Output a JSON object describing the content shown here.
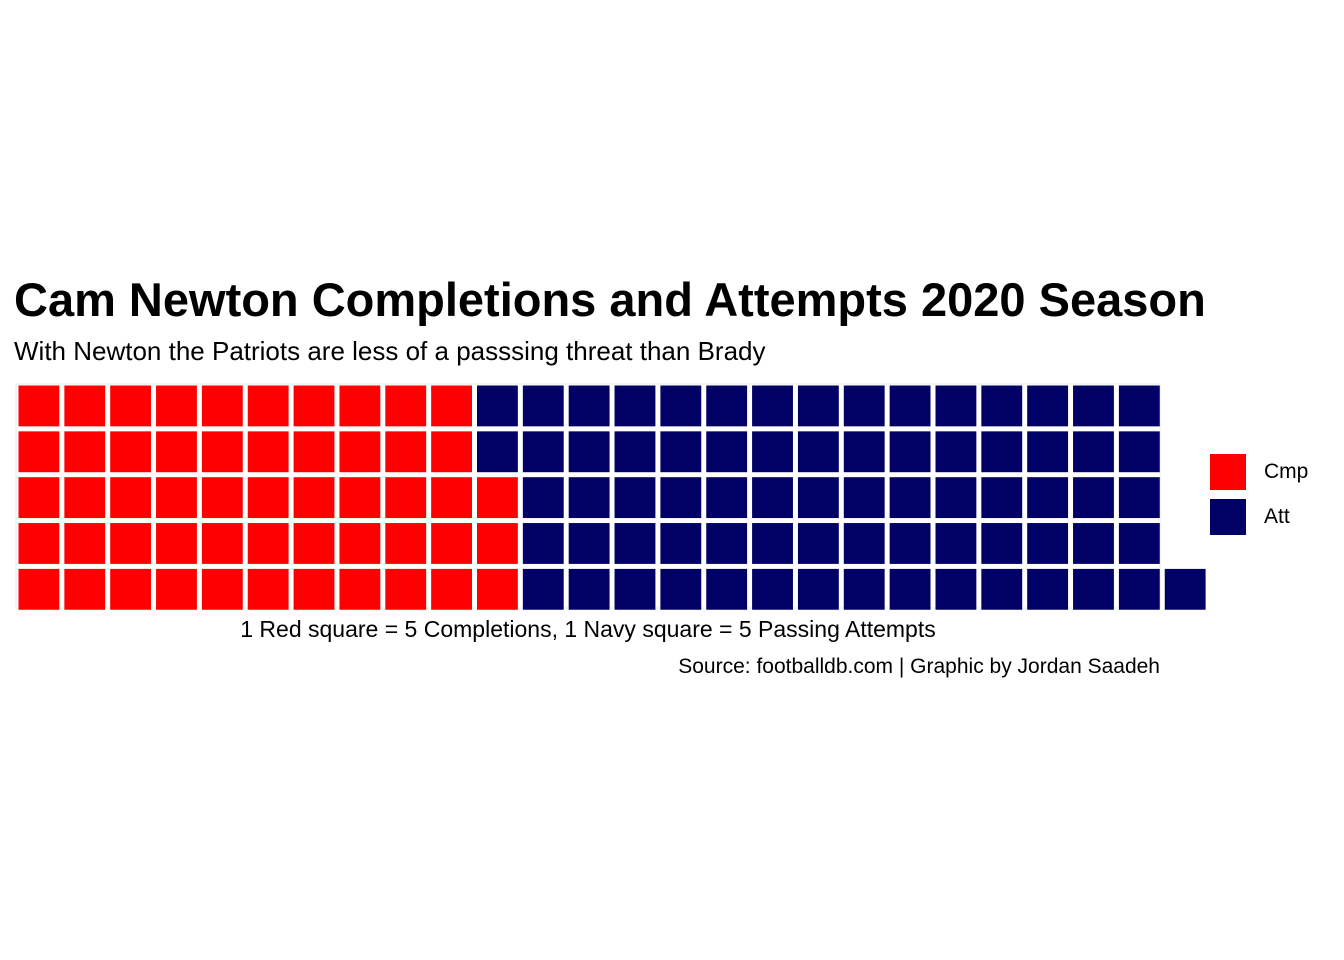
{
  "chart_data": {
    "type": "waffle",
    "title": "Cam Newton Completions and Attempts 2020 Season",
    "subtitle": "With Newton the Patriots are less of a passsing threat than Brady",
    "xlabel": "1 Red square = 5 Completions, 1 Navy square = 5 Passing Attempts",
    "caption": "Source: footballdb.com | Graphic by Jordan Saadeh",
    "rows": 5,
    "fill_order": "column-wise, bottom row first",
    "categories": [
      "Cmp",
      "Att"
    ],
    "values": [
      53,
      73
    ],
    "colors": [
      "#ff0000",
      "#000066"
    ],
    "legend": {
      "position": "right",
      "entries": [
        "Cmp",
        "Att"
      ]
    },
    "grid": false
  }
}
